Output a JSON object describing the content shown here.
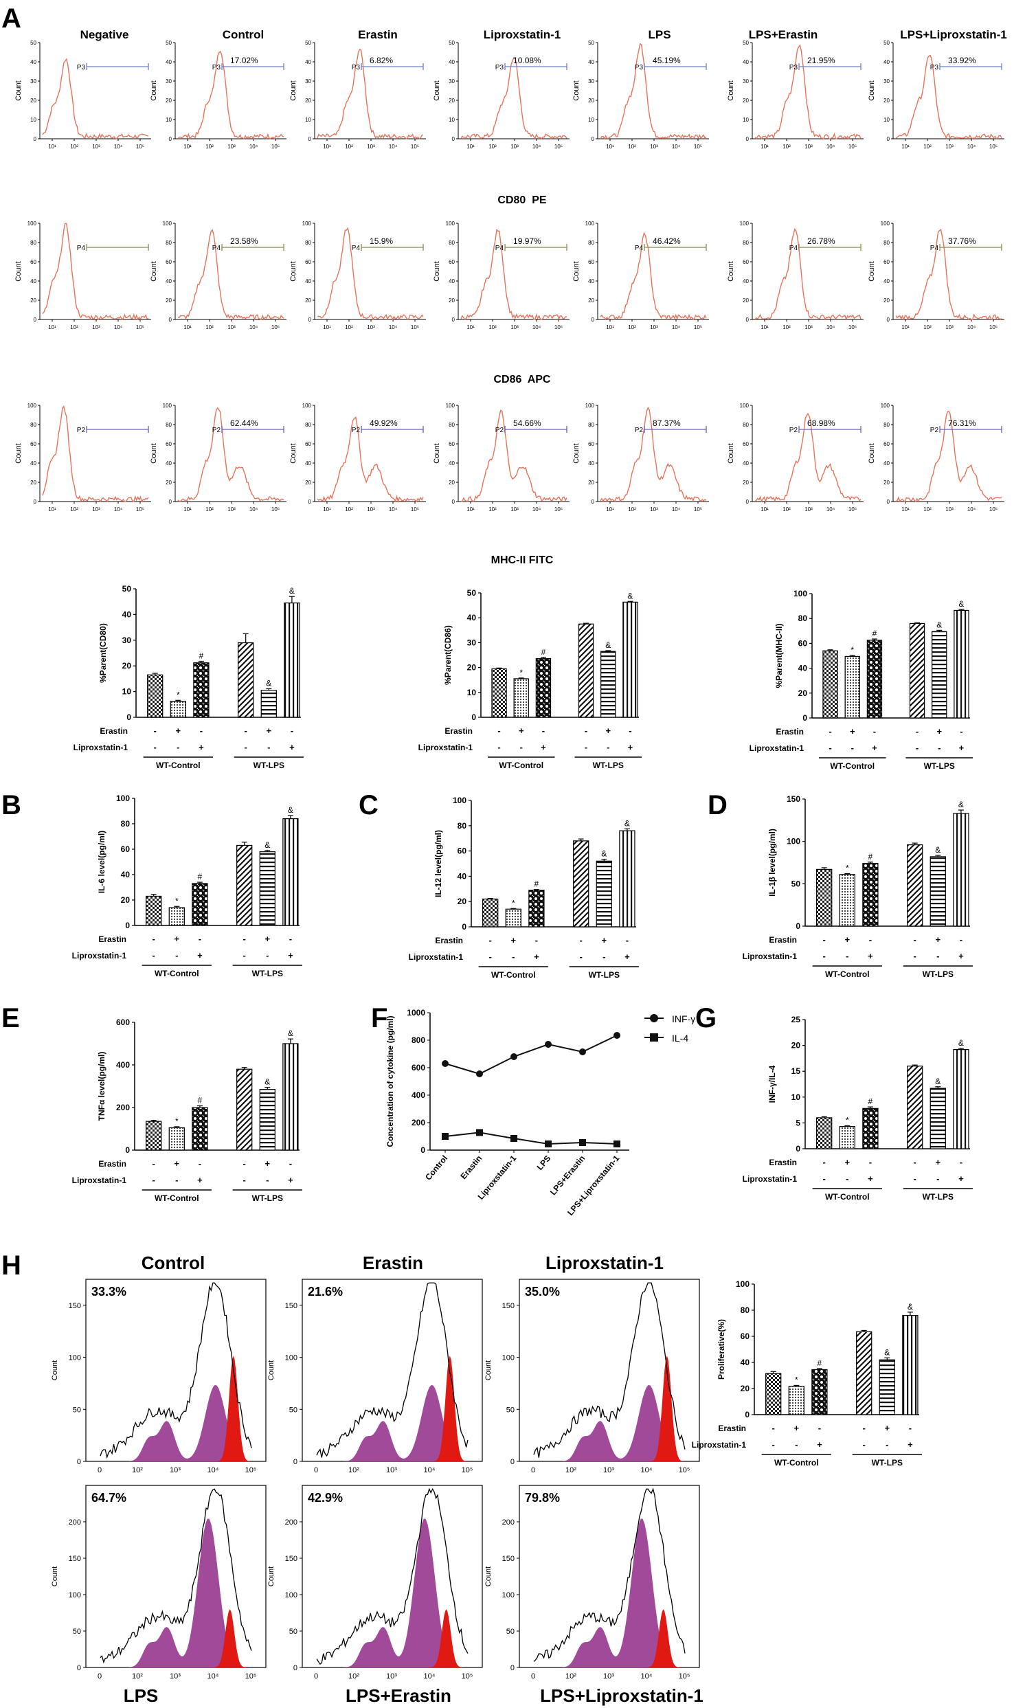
{
  "figure": {
    "letters": [
      "A",
      "B",
      "C",
      "D",
      "E",
      "F",
      "G",
      "H"
    ],
    "group_left": "WT-Control",
    "group_right": "WT-LPS",
    "row_erastin": "Erastin",
    "row_lipro": "Liproxstatin-1",
    "signs": [
      [
        "-",
        "+",
        "-"
      ],
      [
        "-",
        "-",
        "+"
      ]
    ],
    "colors": {
      "histogram": "#e8735a",
      "gate_cd80": "#6f7fc7",
      "gate_cd86": "#8c8a4c",
      "gate_mhc": "#6a5fb5",
      "magenta": "#a14a9a",
      "red": "#e01a12"
    }
  },
  "flow": {
    "columns": [
      "Negative",
      "Control",
      "Erastin",
      "Liproxstatin-1",
      "LPS",
      "LPS+Erastin",
      "LPS+Liproxstatin-1"
    ],
    "tick_labels": [
      "10¹",
      "10²",
      "10³",
      "10⁴",
      "10⁵"
    ],
    "ylabel": "Count",
    "markers": [
      "CD80  PE",
      "CD86  APC",
      "MHC-II FITC"
    ],
    "gates": [
      {
        "name": "P3",
        "values": [
          "",
          "17.02%",
          "6.82%",
          "10.08%",
          "45.19%",
          "21.95%",
          "33.92%"
        ]
      },
      {
        "name": "P4",
        "values": [
          "",
          "23.58%",
          "15.9%",
          "19.97%",
          "46.42%",
          "26.78%",
          "37.76%"
        ]
      },
      {
        "name": "P2",
        "values": [
          "",
          "62.44%",
          "49.92%",
          "54.66%",
          "87.37%",
          "68.98%",
          "76.31%"
        ]
      }
    ]
  },
  "chart_data": [
    {
      "type": "bar",
      "title": "",
      "ylabel": "%Parent(CD80)",
      "ylim": [
        0,
        50
      ],
      "yticks": [
        0,
        10,
        20,
        30,
        40,
        50
      ],
      "categories": [
        "Control",
        "Erastin",
        "Liproxstatin-1",
        "LPS",
        "LPS+Erastin",
        "LPS+Liproxstatin-1"
      ],
      "values": [
        16.5,
        6.2,
        21.2,
        29.0,
        10.5,
        44.5
      ],
      "errors": [
        0.6,
        0.4,
        0.6,
        3.5,
        0.6,
        2.5
      ],
      "marks": [
        "",
        "*",
        "#",
        "",
        "&",
        "&"
      ]
    },
    {
      "type": "bar",
      "title": "",
      "ylabel": "%Parent(CD86)",
      "ylim": [
        0,
        50
      ],
      "yticks": [
        0,
        10,
        20,
        30,
        40,
        50
      ],
      "categories": [
        "Control",
        "Erastin",
        "Liproxstatin-1",
        "LPS",
        "LPS+Erastin",
        "LPS+Liproxstatin-1"
      ],
      "values": [
        19.5,
        15.5,
        23.6,
        37.5,
        26.5,
        46.3
      ],
      "errors": [
        0.3,
        0.3,
        0.5,
        0.3,
        0.3,
        0.3
      ],
      "marks": [
        "",
        "*",
        "#",
        "",
        "&",
        "&"
      ]
    },
    {
      "type": "bar",
      "title": "",
      "ylabel": "%Parent(MHC-II)",
      "ylim": [
        0,
        100
      ],
      "yticks": [
        0,
        20,
        40,
        60,
        80,
        100
      ],
      "categories": [
        "Control",
        "Erastin",
        "Liproxstatin-1",
        "LPS",
        "LPS+Erastin",
        "LPS+Liproxstatin-1"
      ],
      "values": [
        54,
        49.5,
        62.5,
        76,
        69.5,
        86.5
      ],
      "errors": [
        0.8,
        0.8,
        1.0,
        0.5,
        1.0,
        0.8
      ],
      "marks": [
        "",
        "*",
        "#",
        "",
        "&",
        "&"
      ]
    },
    {
      "type": "bar",
      "title": "",
      "ylabel": "IL-6 level(pg/ml)",
      "ylim": [
        0,
        100
      ],
      "yticks": [
        0,
        20,
        40,
        60,
        80,
        100
      ],
      "categories": [
        "Control",
        "Erastin",
        "Liproxstatin-1",
        "LPS",
        "LPS+Erastin",
        "LPS+Liproxstatin-1"
      ],
      "values": [
        23,
        14,
        33,
        63,
        58,
        84
      ],
      "errors": [
        1.5,
        1.0,
        1.0,
        2.5,
        1.0,
        2.5
      ],
      "marks": [
        "",
        "*",
        "#",
        "",
        "&",
        "&"
      ]
    },
    {
      "type": "bar",
      "title": "",
      "ylabel": "IL-12 level(pg/ml)",
      "ylim": [
        0,
        100
      ],
      "yticks": [
        0,
        20,
        40,
        60,
        80,
        100
      ],
      "categories": [
        "Control",
        "Erastin",
        "Liproxstatin-1",
        "LPS",
        "LPS+Erastin",
        "LPS+Liproxstatin-1"
      ],
      "values": [
        22,
        14,
        29,
        68,
        52,
        76
      ],
      "errors": [
        0.5,
        0.5,
        0.5,
        1.5,
        1.5,
        1.5
      ],
      "marks": [
        "",
        "*",
        "#",
        "",
        "&",
        "&"
      ]
    },
    {
      "type": "bar",
      "title": "",
      "ylabel": "IL-1β level(pg/ml)",
      "ylim": [
        0,
        150
      ],
      "yticks": [
        0,
        50,
        100,
        150
      ],
      "categories": [
        "Control",
        "Erastin",
        "Liproxstatin-1",
        "LPS",
        "LPS+Erastin",
        "LPS+Liproxstatin-1"
      ],
      "values": [
        67,
        61,
        74,
        96,
        82,
        133
      ],
      "errors": [
        2,
        1,
        1.5,
        2,
        1.5,
        4
      ],
      "marks": [
        "",
        "*",
        "#",
        "",
        "&",
        "&"
      ]
    },
    {
      "type": "bar",
      "title": "",
      "ylabel": "TNFα level(pg/ml)",
      "ylim": [
        0,
        600
      ],
      "yticks": [
        0,
        200,
        400,
        600
      ],
      "categories": [
        "Control",
        "Erastin",
        "Liproxstatin-1",
        "LPS",
        "LPS+Erastin",
        "LPS+Liproxstatin-1"
      ],
      "values": [
        135,
        105,
        200,
        380,
        285,
        500
      ],
      "errors": [
        5,
        5,
        8,
        8,
        10,
        22
      ],
      "marks": [
        "",
        "*",
        "#",
        "",
        "&",
        "&"
      ]
    },
    {
      "type": "line",
      "title": "",
      "ylabel": "Concentration of cytokine (pg/ml)",
      "ylim": [
        0,
        1000
      ],
      "yticks": [
        0,
        200,
        400,
        600,
        800,
        1000
      ],
      "x": [
        "Control",
        "Erastin",
        "Liproxstatin-1",
        "LPS",
        "LPS+Erastin",
        "LPS+Liproxstatin-1"
      ],
      "series": [
        {
          "name": "INF-γ",
          "values": [
            630,
            555,
            680,
            770,
            715,
            835
          ]
        },
        {
          "name": "IL-4",
          "values": [
            100,
            128,
            85,
            45,
            55,
            45
          ]
        }
      ]
    },
    {
      "type": "bar",
      "title": "",
      "ylabel": "INF-γ/IL-4",
      "ylim": [
        0,
        25
      ],
      "yticks": [
        0,
        5,
        10,
        15,
        20,
        25
      ],
      "categories": [
        "Control",
        "Erastin",
        "Liproxstatin-1",
        "LPS",
        "LPS+Erastin",
        "LPS+Liproxstatin-1"
      ],
      "values": [
        6,
        4.3,
        7.8,
        16,
        11.7,
        19.2
      ],
      "errors": [
        0.2,
        0.15,
        0.3,
        0.2,
        0.3,
        0.2
      ],
      "marks": [
        "",
        "*",
        "#",
        "",
        "&",
        "&"
      ]
    },
    {
      "type": "bar",
      "title": "",
      "ylabel": "Proliferative(%)",
      "ylim": [
        0,
        100
      ],
      "yticks": [
        0,
        20,
        40,
        60,
        80,
        100
      ],
      "categories": [
        "Control",
        "Erastin",
        "Liproxstatin-1",
        "LPS",
        "LPS+Erastin",
        "LPS+Liproxstatin-1"
      ],
      "values": [
        31.5,
        21.6,
        34.5,
        63.5,
        42,
        76
      ],
      "errors": [
        1.5,
        0.8,
        0.8,
        1.0,
        1.5,
        2.5
      ],
      "marks": [
        "",
        "*",
        "#",
        "",
        "&",
        "&"
      ]
    }
  ],
  "prolif": {
    "titles_top": [
      "Control",
      "Erastin",
      "Liproxstatin-1"
    ],
    "titles_bottom": [
      "LPS",
      "LPS+Erastin",
      "LPS+Liproxstatin-1"
    ],
    "percents": [
      "33.3%",
      "21.6%",
      "35.0%",
      "64.7%",
      "42.9%",
      "79.8%"
    ],
    "ylabel": "Count",
    "xticks": [
      "0",
      "10²",
      "10³",
      "10⁴",
      "10⁵"
    ],
    "yticks": [
      [
        0,
        50,
        100,
        150
      ],
      [
        0,
        50,
        100,
        150
      ],
      [
        0,
        50,
        100,
        150
      ],
      [
        0,
        50,
        100,
        150,
        200
      ],
      [
        0,
        50,
        100,
        150,
        200
      ],
      [
        0,
        50,
        100,
        150,
        200
      ]
    ]
  }
}
